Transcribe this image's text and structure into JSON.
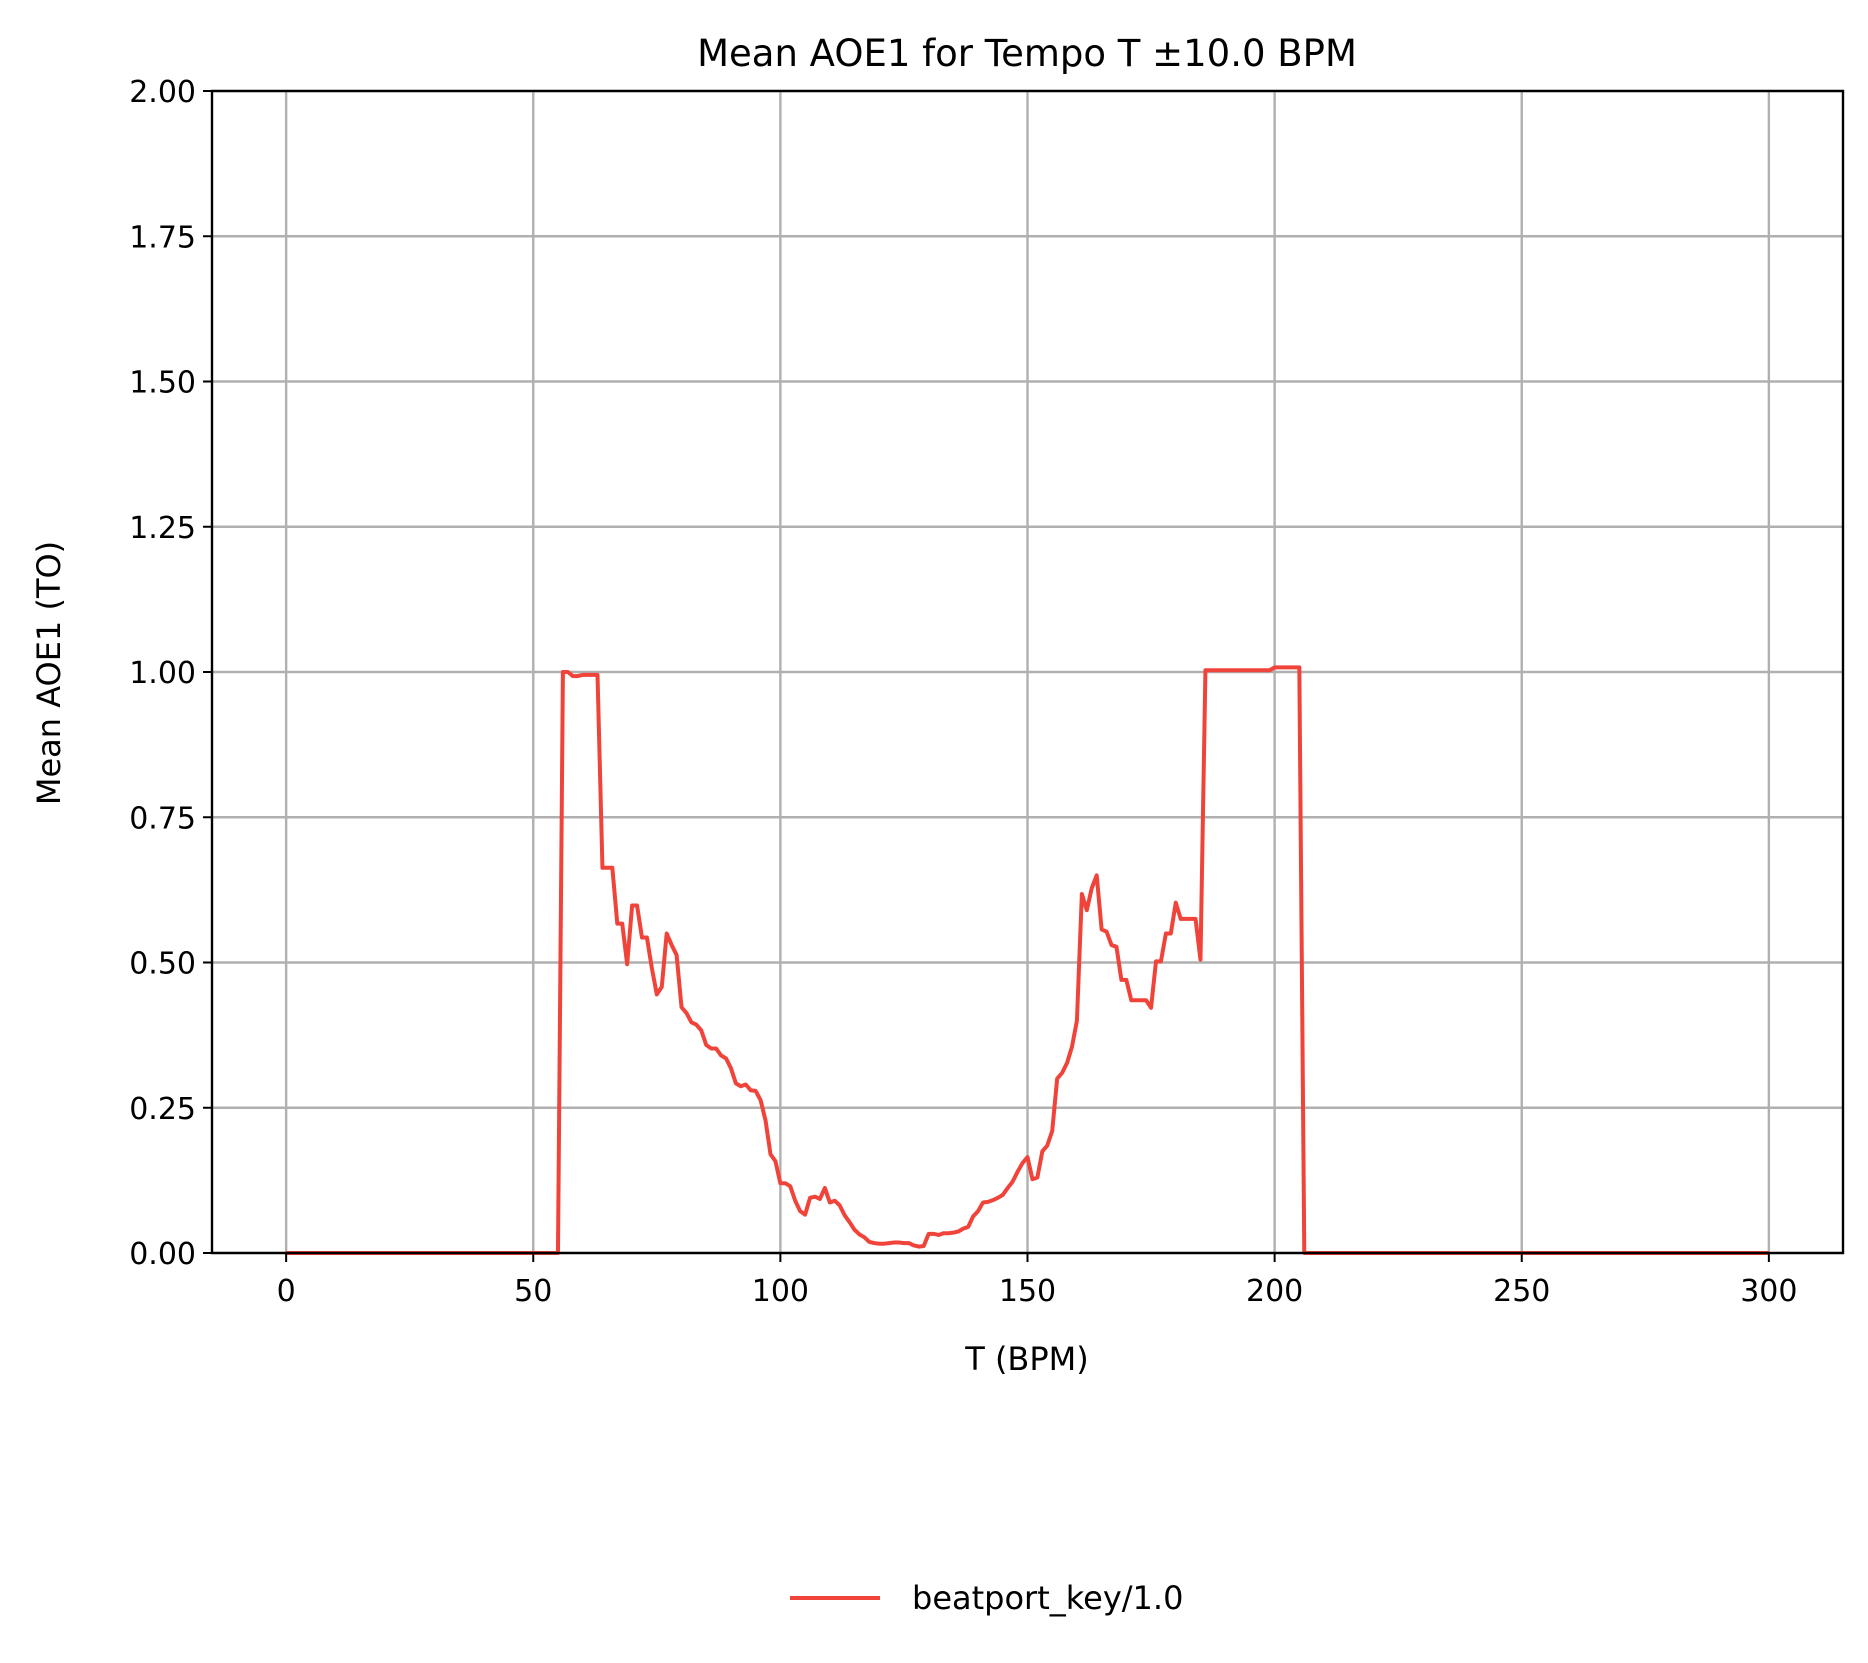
{
  "chart_data": {
    "type": "line",
    "title": "Mean AOE1 for Tempo T ±10.0 BPM",
    "xlabel": "T (BPM)",
    "ylabel": "Mean AOE1 (TO)",
    "xlim": [
      -15,
      315
    ],
    "ylim": [
      0,
      2
    ],
    "xticks": [
      0,
      50,
      100,
      150,
      200,
      250,
      300
    ],
    "xtick_labels": [
      "0",
      "50",
      "100",
      "150",
      "200",
      "250",
      "300"
    ],
    "yticks": [
      0,
      0.25,
      0.5,
      0.75,
      1.0,
      1.25,
      1.5,
      1.75,
      2.0
    ],
    "ytick_labels": [
      "0.00",
      "0.25",
      "0.50",
      "0.75",
      "1.00",
      "1.25",
      "1.50",
      "1.75",
      "2.00"
    ],
    "grid": true,
    "legend_position": "bottom-center",
    "colors": {
      "series": "#f0433a"
    },
    "series": [
      {
        "name": "beatport_key/1.0",
        "x": [
          0,
          55,
          56,
          57,
          58,
          59,
          60,
          61,
          62,
          63,
          64,
          65,
          66,
          67,
          68,
          69,
          70,
          71,
          72,
          73,
          74,
          75,
          76,
          77,
          78,
          79,
          80,
          81,
          82,
          83,
          84,
          85,
          86,
          87,
          88,
          89,
          90,
          91,
          92,
          93,
          94,
          95,
          96,
          97,
          98,
          99,
          100,
          101,
          102,
          103,
          104,
          105,
          106,
          107,
          108,
          109,
          110,
          111,
          112,
          113,
          114,
          115,
          116,
          117,
          118,
          119,
          120,
          121,
          122,
          123,
          124,
          125,
          126,
          127,
          128,
          129,
          130,
          131,
          132,
          133,
          134,
          135,
          136,
          137,
          138,
          139,
          140,
          141,
          142,
          143,
          144,
          145,
          146,
          147,
          148,
          149,
          150,
          151,
          152,
          153,
          154,
          155,
          156,
          157,
          158,
          159,
          160,
          161,
          162,
          163,
          164,
          165,
          166,
          167,
          168,
          169,
          170,
          171,
          172,
          173,
          174,
          175,
          176,
          177,
          178,
          179,
          180,
          181,
          182,
          183,
          184,
          185,
          186,
          187,
          190,
          195,
          199,
          200,
          205,
          206,
          300
        ],
        "values": [
          0,
          0,
          1.0,
          1.0,
          0.993,
          0.993,
          0.995,
          0.995,
          0.995,
          0.995,
          0.663,
          0.663,
          0.663,
          0.567,
          0.567,
          0.497,
          0.598,
          0.598,
          0.543,
          0.543,
          0.49,
          0.445,
          0.458,
          0.55,
          0.53,
          0.513,
          0.423,
          0.413,
          0.397,
          0.393,
          0.383,
          0.358,
          0.352,
          0.352,
          0.34,
          0.335,
          0.318,
          0.292,
          0.287,
          0.29,
          0.28,
          0.279,
          0.263,
          0.228,
          0.17,
          0.158,
          0.12,
          0.12,
          0.115,
          0.09,
          0.072,
          0.066,
          0.095,
          0.097,
          0.093,
          0.112,
          0.087,
          0.09,
          0.082,
          0.065,
          0.053,
          0.04,
          0.032,
          0.027,
          0.019,
          0.017,
          0.016,
          0.016,
          0.017,
          0.018,
          0.018,
          0.017,
          0.017,
          0.013,
          0.011,
          0.012,
          0.033,
          0.033,
          0.031,
          0.034,
          0.034,
          0.035,
          0.037,
          0.042,
          0.045,
          0.063,
          0.072,
          0.087,
          0.088,
          0.091,
          0.095,
          0.1,
          0.112,
          0.123,
          0.14,
          0.155,
          0.165,
          0.127,
          0.13,
          0.175,
          0.185,
          0.21,
          0.3,
          0.31,
          0.327,
          0.355,
          0.4,
          0.618,
          0.59,
          0.628,
          0.65,
          0.557,
          0.553,
          0.53,
          0.527,
          0.47,
          0.47,
          0.435,
          0.435,
          0.435,
          0.435,
          0.422,
          0.502,
          0.502,
          0.55,
          0.55,
          0.603,
          0.575,
          0.575,
          0.575,
          0.575,
          0.505,
          1.003,
          1.003,
          1.003,
          1.003,
          1.003,
          1.008,
          1.008,
          0,
          0
        ]
      }
    ]
  }
}
